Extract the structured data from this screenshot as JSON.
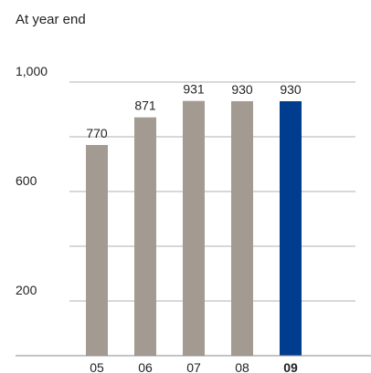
{
  "chart_data": {
    "type": "bar",
    "subtitle": "At year end",
    "categories": [
      "05",
      "06",
      "07",
      "08",
      "09"
    ],
    "values": [
      770,
      871,
      931,
      930,
      930
    ],
    "data_labels": [
      "770",
      "871",
      "931",
      "930",
      "930"
    ],
    "highlight_index": 4,
    "ylim": [
      0,
      1000
    ],
    "gridlines": [
      200,
      400,
      600,
      800,
      1000
    ],
    "ytick_labels": [
      {
        "value": 1000,
        "label": "1,000"
      },
      {
        "value": 600,
        "label": "600"
      },
      {
        "value": 200,
        "label": "200"
      }
    ],
    "grid": true,
    "legend": "none",
    "colors": {
      "bar": "#a39a91",
      "highlight": "#003d8f",
      "grid": "#b0b0b0",
      "axis": "#8a8a8a",
      "highlight_label": "#1d3f8a"
    }
  }
}
